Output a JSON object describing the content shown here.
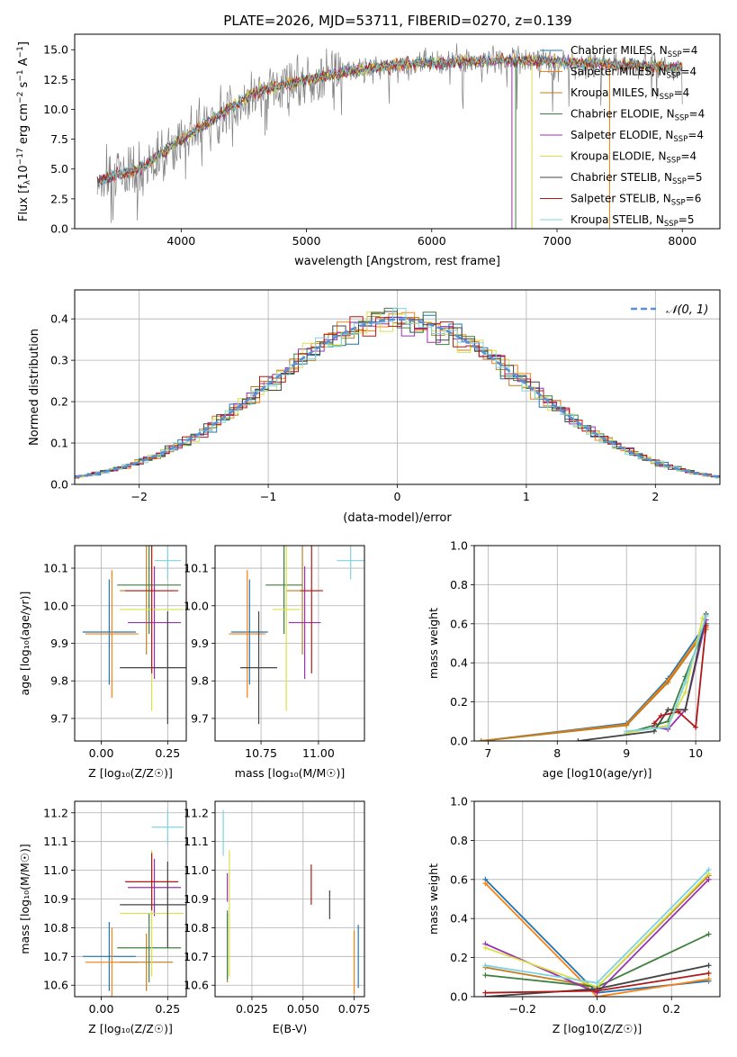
{
  "figure": {
    "title": "PLATE=2026, MJD=53711, FIBERID=0270, z=0.139"
  },
  "series_styles": [
    {
      "name": "Chabrier MILES",
      "nssp": "4",
      "color": "#1f77b4"
    },
    {
      "name": "Salpeter MILES",
      "nssp": "4",
      "color": "#ff7f0e"
    },
    {
      "name": "Kroupa MILES",
      "nssp": "4",
      "color": "#bf7d1f"
    },
    {
      "name": "Chabrier ELODIE",
      "nssp": "4",
      "color": "#3f7f3f"
    },
    {
      "name": "Salpeter ELODIE",
      "nssp": "4",
      "color": "#9b30b0"
    },
    {
      "name": "Kroupa ELODIE",
      "nssp": "4",
      "color": "#d9e04a"
    },
    {
      "name": "Chabrier STELIB",
      "nssp": "5",
      "color": "#444444"
    },
    {
      "name": "Salpeter STELIB",
      "nssp": "6",
      "color": "#b01818"
    },
    {
      "name": "Kroupa STELIB",
      "nssp": "5",
      "color": "#7fd3e0"
    }
  ],
  "chart_data": [
    {
      "id": "spectrum",
      "type": "line",
      "title": "PLATE=2026, MJD=53711, FIBERID=0270, z=0.139",
      "xlabel": "wavelength [Angstrom, rest frame]",
      "ylabel": "Flux [f_λ 10^-17 erg cm^-2 s^-1 A^-1]",
      "xlim": [
        3150,
        8300
      ],
      "ylim": [
        0,
        16.3
      ],
      "xticks": [
        4000,
        5000,
        6000,
        7000,
        8000
      ],
      "yticks": [
        0.0,
        2.5,
        5.0,
        7.5,
        10.0,
        12.5,
        15.0
      ],
      "grid": false,
      "legend_position": "right",
      "spectrum_envelope": {
        "x": [
          3330,
          3500,
          3700,
          4000,
          4300,
          4600,
          5000,
          5400,
          5800,
          6200,
          6600,
          7000,
          7400,
          8000
        ],
        "y": [
          4.0,
          4.5,
          5.2,
          7.5,
          9.5,
          11.5,
          12.5,
          13.3,
          13.8,
          14.0,
          14.1,
          14.0,
          13.8,
          13.5
        ]
      },
      "data_gaps_x": [
        6640,
        6670,
        6800,
        7420
      ]
    },
    {
      "id": "residuals",
      "type": "line",
      "xlabel": "(data-model)/error",
      "ylabel": "Normed distribution",
      "xlim": [
        -2.5,
        2.5
      ],
      "ylim": [
        0,
        0.47
      ],
      "xticks": [
        -2,
        -1,
        0,
        1,
        2
      ],
      "yticks": [
        0.0,
        0.1,
        0.2,
        0.3,
        0.4
      ],
      "grid": true,
      "legend": [
        {
          "name": "N(0,1)",
          "style": "dashed",
          "color": "#5a8fd6"
        }
      ],
      "legend_position": "top-right",
      "bin_width": 0.1
    },
    {
      "id": "age-vs-Z",
      "type": "scatter",
      "xlabel": "Z [log10(Z/Z☉)]",
      "ylabel": "age [log10(age/yr)]",
      "xlim": [
        -0.1,
        0.32
      ],
      "ylim": [
        9.64,
        10.16
      ],
      "xticks": [
        0.0,
        0.25
      ],
      "yticks": [
        9.7,
        9.8,
        9.9,
        10.0,
        10.1
      ],
      "grid": true,
      "points": [
        {
          "x": 0.03,
          "y": 9.93,
          "xerr": 0.1,
          "yerr": 0.14
        },
        {
          "x": 0.04,
          "y": 9.925,
          "xerr": 0.1,
          "yerr": 0.17
        },
        {
          "x": 0.17,
          "y": 10.04,
          "xerr": 0.1,
          "yerr": 0.17
        },
        {
          "x": 0.18,
          "y": 10.055,
          "xerr": 0.12,
          "yerr": 0.13
        },
        {
          "x": 0.2,
          "y": 9.955,
          "xerr": 0.1,
          "yerr": 0.15
        },
        {
          "x": 0.19,
          "y": 9.99,
          "xerr": 0.12,
          "yerr": 0.27
        },
        {
          "x": 0.25,
          "y": 9.835,
          "xerr": 0.18,
          "yerr": 0.15
        },
        {
          "x": 0.19,
          "y": 10.04,
          "xerr": 0.1,
          "yerr": 0.22
        },
        {
          "x": 0.25,
          "y": 10.12,
          "xerr": 0.05,
          "yerr": 0.05
        }
      ]
    },
    {
      "id": "age-vs-mass",
      "type": "scatter",
      "xlabel": "mass [log10(M/M☉)]",
      "ylabel": "",
      "xlim": [
        10.55,
        11.2
      ],
      "ylim": [
        9.64,
        10.16
      ],
      "xticks": [
        10.75,
        11.0
      ],
      "yticks": [
        9.7,
        9.8,
        9.9,
        10.0,
        10.1
      ],
      "grid": true,
      "points": [
        {
          "x": 10.7,
          "y": 9.93,
          "xerr": 0.08,
          "yerr": 0.14
        },
        {
          "x": 10.69,
          "y": 9.925,
          "xerr": 0.08,
          "yerr": 0.17
        },
        {
          "x": 10.93,
          "y": 10.04,
          "xerr": 0.07,
          "yerr": 0.17
        },
        {
          "x": 10.85,
          "y": 10.055,
          "xerr": 0.08,
          "yerr": 0.13
        },
        {
          "x": 10.94,
          "y": 9.955,
          "xerr": 0.07,
          "yerr": 0.15
        },
        {
          "x": 10.86,
          "y": 9.99,
          "xerr": 0.06,
          "yerr": 0.27
        },
        {
          "x": 10.74,
          "y": 9.835,
          "xerr": 0.08,
          "yerr": 0.15
        },
        {
          "x": 10.97,
          "y": 10.04,
          "xerr": 0.05,
          "yerr": 0.22
        },
        {
          "x": 11.14,
          "y": 10.12,
          "xerr": 0.06,
          "yerr": 0.05
        }
      ]
    },
    {
      "id": "weight-vs-age",
      "type": "line",
      "xlabel": "age [log10(age/yr)]",
      "ylabel": "mass weight",
      "xlim": [
        6.8,
        10.35
      ],
      "ylim": [
        0,
        1.0
      ],
      "xticks": [
        7,
        8,
        9,
        10
      ],
      "yticks": [
        0.0,
        0.2,
        0.4,
        0.6,
        0.8,
        1.0
      ],
      "grid": true,
      "series": [
        {
          "x": [
            6.9,
            9.0,
            9.6,
            10.15
          ],
          "y": [
            0.0,
            0.09,
            0.32,
            0.6
          ]
        },
        {
          "x": [
            6.9,
            9.0,
            9.6,
            10.15
          ],
          "y": [
            0.0,
            0.085,
            0.31,
            0.58
          ]
        },
        {
          "x": [
            6.9,
            9.0,
            9.6,
            10.15
          ],
          "y": [
            0.0,
            0.08,
            0.3,
            0.57
          ]
        },
        {
          "x": [
            9.0,
            9.6,
            9.85,
            10.15
          ],
          "y": [
            0.04,
            0.1,
            0.33,
            0.6
          ]
        },
        {
          "x": [
            9.4,
            9.6,
            9.85,
            10.15
          ],
          "y": [
            0.07,
            0.06,
            0.16,
            0.62
          ]
        },
        {
          "x": [
            9.0,
            9.6,
            9.85,
            10.1
          ],
          "y": [
            0.04,
            0.08,
            0.25,
            0.63
          ]
        },
        {
          "x": [
            8.3,
            9.4,
            9.6,
            9.85,
            10.15
          ],
          "y": [
            0.0,
            0.05,
            0.16,
            0.16,
            0.65
          ]
        },
        {
          "x": [
            9.4,
            9.5,
            9.75,
            10.0,
            10.15
          ],
          "y": [
            0.09,
            0.13,
            0.15,
            0.07,
            0.59
          ]
        },
        {
          "x": [
            9.0,
            9.6,
            9.85,
            10.15
          ],
          "y": [
            0.05,
            0.07,
            0.3,
            0.64
          ]
        }
      ]
    },
    {
      "id": "mass-vs-Z",
      "type": "scatter",
      "xlabel": "Z [log10(Z/Z☉)]",
      "ylabel": "mass [log10(M/M☉)]",
      "xlim": [
        -0.1,
        0.32
      ],
      "ylim": [
        10.56,
        11.24
      ],
      "xticks": [
        0.0,
        0.25
      ],
      "yticks": [
        10.6,
        10.7,
        10.8,
        10.9,
        11.0,
        11.1,
        11.2
      ],
      "grid": true,
      "points": [
        {
          "x": 0.03,
          "y": 10.7,
          "xerr": 0.1,
          "yerr": 0.12
        },
        {
          "x": 0.04,
          "y": 10.68,
          "xerr": 0.1,
          "yerr": 0.12
        },
        {
          "x": 0.17,
          "y": 10.68,
          "xerr": 0.1,
          "yerr": 0.1
        },
        {
          "x": 0.18,
          "y": 10.73,
          "xerr": 0.12,
          "yerr": 0.12
        },
        {
          "x": 0.2,
          "y": 10.94,
          "xerr": 0.1,
          "yerr": 0.1
        },
        {
          "x": 0.19,
          "y": 10.85,
          "xerr": 0.12,
          "yerr": 0.22
        },
        {
          "x": 0.25,
          "y": 10.88,
          "xerr": 0.18,
          "yerr": 0.15
        },
        {
          "x": 0.19,
          "y": 10.96,
          "xerr": 0.1,
          "yerr": 0.1
        },
        {
          "x": 0.25,
          "y": 11.15,
          "xerr": 0.06,
          "yerr": 0.06
        }
      ]
    },
    {
      "id": "mass-vs-ebv",
      "type": "scatter",
      "xlabel": "E(B-V)",
      "ylabel": "",
      "xlim": [
        0.007,
        0.08
      ],
      "ylim": [
        10.56,
        11.24
      ],
      "xticks": [
        0.025,
        0.05,
        0.075
      ],
      "yticks": [
        10.6,
        10.7,
        10.8,
        10.9,
        11.0,
        11.1,
        11.2
      ],
      "grid": true,
      "points": [
        {
          "x": 0.077,
          "y": 10.7,
          "xerr": 0,
          "yerr": 0.11
        },
        {
          "x": 0.075,
          "y": 10.68,
          "xerr": 0,
          "yerr": 0.11
        },
        {
          "x": 0.013,
          "y": 10.73,
          "xerr": 0,
          "yerr": 0.12
        },
        {
          "x": 0.013,
          "y": 10.74,
          "xerr": 0,
          "yerr": 0.12
        },
        {
          "x": 0.013,
          "y": 10.94,
          "xerr": 0,
          "yerr": 0.05
        },
        {
          "x": 0.014,
          "y": 10.85,
          "xerr": 0,
          "yerr": 0.22
        },
        {
          "x": 0.063,
          "y": 10.88,
          "xerr": 0,
          "yerr": 0.05
        },
        {
          "x": 0.054,
          "y": 10.95,
          "xerr": 0,
          "yerr": 0.07
        },
        {
          "x": 0.011,
          "y": 11.13,
          "xerr": 0,
          "yerr": 0.08
        }
      ]
    },
    {
      "id": "weight-vs-Z",
      "type": "line",
      "xlabel": "Z [log10(Z/Z☉)]",
      "ylabel": "mass weight",
      "xlim": [
        -0.33,
        0.33
      ],
      "ylim": [
        0,
        1.0
      ],
      "xticks": [
        -0.2,
        0.0,
        0.2
      ],
      "yticks": [
        0.0,
        0.2,
        0.4,
        0.6,
        0.8,
        1.0
      ],
      "grid": true,
      "series": [
        {
          "x": [
            -0.3,
            0.0,
            0.3
          ],
          "y": [
            0.6,
            0.02,
            0.08
          ]
        },
        {
          "x": [
            -0.3,
            0.0,
            0.3
          ],
          "y": [
            0.58,
            0.0,
            0.09
          ]
        },
        {
          "x": [
            -0.3,
            0.0,
            0.3
          ],
          "y": [
            0.15,
            0.05,
            0.62
          ]
        },
        {
          "x": [
            -0.3,
            0.0,
            0.3
          ],
          "y": [
            0.11,
            0.05,
            0.32
          ]
        },
        {
          "x": [
            -0.3,
            0.0,
            0.3
          ],
          "y": [
            0.27,
            0.02,
            0.6
          ]
        },
        {
          "x": [
            -0.3,
            0.0,
            0.3
          ],
          "y": [
            0.25,
            0.05,
            0.63
          ]
        },
        {
          "x": [
            -0.3,
            0.0,
            0.3
          ],
          "y": [
            0.0,
            0.04,
            0.16
          ]
        },
        {
          "x": [
            -0.3,
            0.0,
            0.3
          ],
          "y": [
            0.02,
            0.03,
            0.12
          ]
        },
        {
          "x": [
            -0.3,
            0.0,
            0.3
          ],
          "y": [
            0.16,
            0.07,
            0.65
          ]
        }
      ]
    }
  ]
}
